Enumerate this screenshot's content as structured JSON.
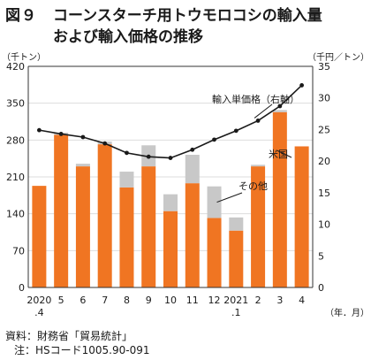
{
  "figure": {
    "number": "図９",
    "title_line1": "コーンスターチ用トウモロコシの輸入量",
    "title_line2": "および輸入価格の推移"
  },
  "source": "資料：財務省「貿易統計」",
  "note": "注：HSコード1005.90-091",
  "colors": {
    "us": "#f07522",
    "other": "#c8c8c8",
    "line": "#1a1a1a",
    "grid": "#dddddd"
  },
  "chart_data": {
    "type": "bar",
    "stacked": true,
    "categories": [
      "2020\n.4",
      "5",
      "6",
      "7",
      "8",
      "9",
      "10",
      "11",
      "12",
      "2021\n.1",
      "2",
      "3",
      "4"
    ],
    "x_unit_label": "（年．月）",
    "y_left": {
      "label": "（千トン）",
      "ylim": [
        0,
        420
      ],
      "ticks": [
        0,
        70,
        140,
        210,
        280,
        350,
        420
      ]
    },
    "y_right": {
      "label": "（千円／トン）",
      "ylim": [
        0,
        35
      ],
      "ticks": [
        0,
        5,
        10,
        15,
        20,
        25,
        30,
        35
      ]
    },
    "grid": true,
    "series": [
      {
        "name": "米国",
        "type": "bar",
        "axis": "left",
        "values": [
          193,
          290,
          230,
          272,
          190,
          230,
          145,
          198,
          132,
          108,
          230,
          333,
          268
        ]
      },
      {
        "name": "その他",
        "type": "bar",
        "axis": "left",
        "values": [
          0,
          4,
          5,
          5,
          30,
          40,
          32,
          54,
          60,
          25,
          3,
          4,
          0
        ]
      },
      {
        "name": "輸入単価格（右軸）",
        "type": "line",
        "axis": "right",
        "values": [
          24.9,
          24.3,
          23.8,
          22.8,
          21.3,
          20.7,
          20.5,
          21.8,
          23.4,
          24.8,
          26.4,
          28.7,
          32.0
        ]
      }
    ],
    "annotations": [
      {
        "text": "輸入単価格（右軸）",
        "target": "輸入単価格（右軸）"
      },
      {
        "text": "その他",
        "target": "その他"
      },
      {
        "text": "米国",
        "target": "米国"
      }
    ]
  }
}
